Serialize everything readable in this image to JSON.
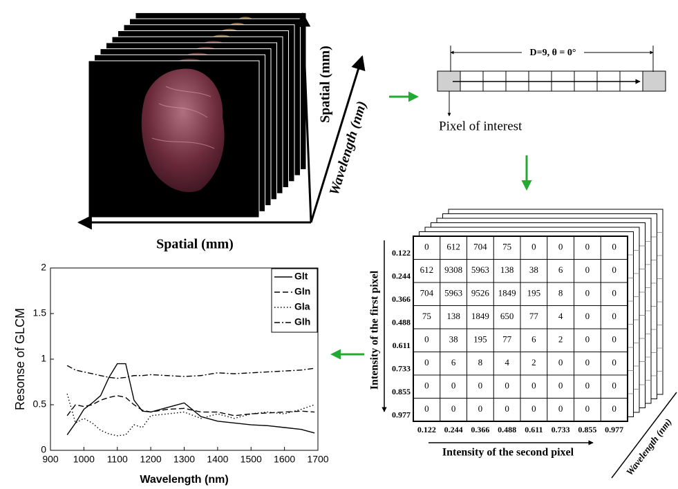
{
  "cube": {
    "axis_vertical": "Spatial (mm)",
    "axis_diagonal": "Wavelength (nm)",
    "axis_horizontal": "Spatial (mm)"
  },
  "offset_diagram": {
    "distance_label": "D=9, θ = 0°",
    "pixel_label": "Pixel of interest"
  },
  "glcm": {
    "row_levels": [
      "0.122",
      "0.244",
      "0.366",
      "0.488",
      "0.611",
      "0.733",
      "0.855",
      "0.977"
    ],
    "col_levels": [
      "0.122",
      "0.244",
      "0.366",
      "0.488",
      "0.611",
      "0.733",
      "0.855",
      "0.977"
    ],
    "rows": [
      [
        0,
        612,
        704,
        75,
        0,
        0,
        0,
        0
      ],
      [
        612,
        9308,
        5963,
        138,
        38,
        6,
        0,
        0
      ],
      [
        704,
        5963,
        9526,
        1849,
        195,
        8,
        0,
        0
      ],
      [
        75,
        138,
        1849,
        650,
        77,
        4,
        0,
        0
      ],
      [
        0,
        38,
        195,
        77,
        6,
        2,
        0,
        0
      ],
      [
        0,
        6,
        8,
        4,
        2,
        0,
        0,
        0
      ],
      [
        0,
        0,
        0,
        0,
        0,
        0,
        0,
        0
      ],
      [
        0,
        0,
        0,
        0,
        0,
        0,
        0,
        0
      ]
    ],
    "row_axis_label": "Intensity of the first pixel",
    "col_axis_label": "Intensity of the second pixel",
    "depth_axis_label": "Wavelength (nm)"
  },
  "chart_data": {
    "type": "line",
    "xlabel": "Wavelength (nm)",
    "ylabel": "Resonse of GLCM",
    "x": [
      950,
      975,
      1000,
      1025,
      1050,
      1075,
      1100,
      1125,
      1150,
      1175,
      1200,
      1250,
      1300,
      1350,
      1400,
      1450,
      1500,
      1550,
      1600,
      1650,
      1690
    ],
    "xlim": [
      900,
      1700
    ],
    "ylim": [
      0,
      2
    ],
    "xticks": [
      900,
      1000,
      1100,
      1200,
      1300,
      1400,
      1500,
      1600,
      1700
    ],
    "yticks": [
      0,
      0.5,
      1,
      1.5,
      2
    ],
    "legend": "upper right",
    "series": [
      {
        "name": "Glt",
        "color": "#000000",
        "style": "solid",
        "values": [
          0.17,
          0.3,
          0.45,
          0.52,
          0.6,
          0.8,
          0.95,
          0.95,
          0.55,
          0.43,
          0.42,
          0.47,
          0.52,
          0.37,
          0.32,
          0.3,
          0.28,
          0.27,
          0.25,
          0.23,
          0.19
        ]
      },
      {
        "name": "Gln",
        "color": "#000000",
        "style": "dashed",
        "values": [
          0.38,
          0.5,
          0.48,
          0.5,
          0.55,
          0.58,
          0.6,
          0.58,
          0.5,
          0.44,
          0.42,
          0.45,
          0.46,
          0.42,
          0.42,
          0.38,
          0.4,
          0.41,
          0.42,
          0.43,
          0.42
        ]
      },
      {
        "name": "Gla",
        "color": "#000000",
        "style": "dotted",
        "values": [
          0.62,
          0.3,
          0.35,
          0.3,
          0.22,
          0.18,
          0.16,
          0.17,
          0.28,
          0.25,
          0.38,
          0.4,
          0.42,
          0.35,
          0.4,
          0.35,
          0.4,
          0.42,
          0.4,
          0.45,
          0.5
        ]
      },
      {
        "name": "Glh",
        "color": "#000000",
        "style": "dashdot",
        "values": [
          0.93,
          0.88,
          0.86,
          0.84,
          0.82,
          0.8,
          0.79,
          0.8,
          0.82,
          0.82,
          0.83,
          0.82,
          0.81,
          0.82,
          0.85,
          0.84,
          0.85,
          0.86,
          0.87,
          0.88,
          0.9
        ]
      }
    ]
  }
}
